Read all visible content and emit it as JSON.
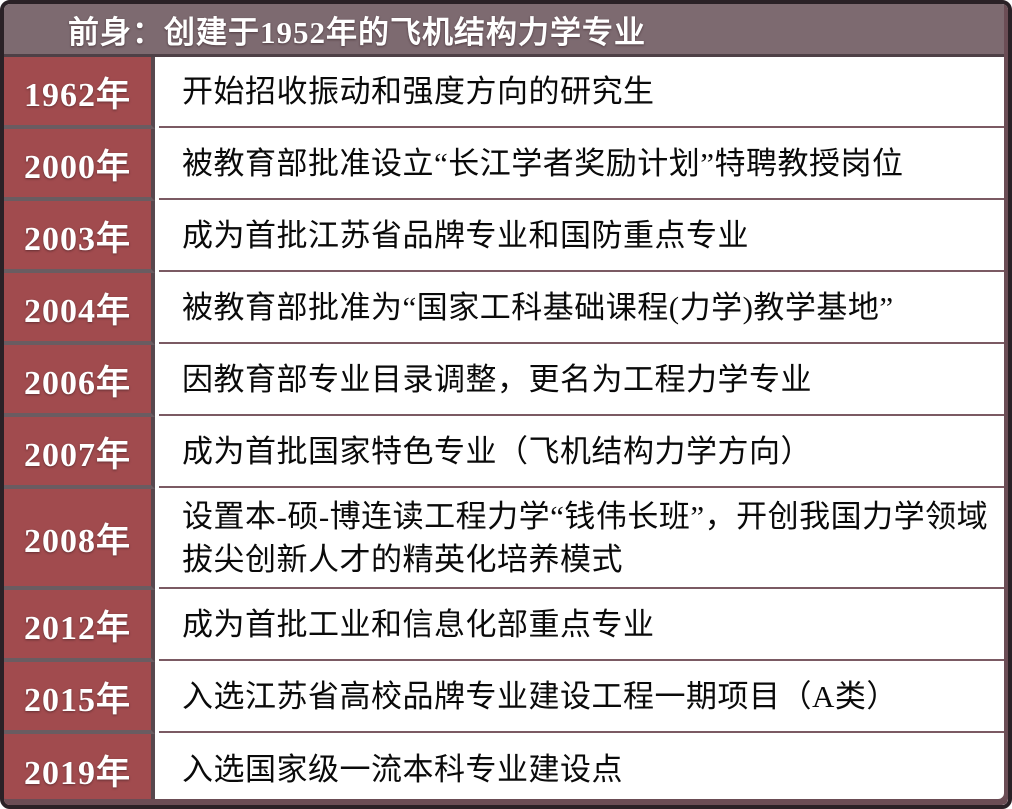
{
  "header": {
    "title": "前身：创建于1952年的飞机结构力学专业"
  },
  "rows": [
    {
      "year": "1962年",
      "desc": "开始招收振动和强度方向的研究生",
      "tall": false
    },
    {
      "year": "2000年",
      "desc": "被教育部批准设立“长江学者奖励计划”特聘教授岗位",
      "tall": false
    },
    {
      "year": "2003年",
      "desc": "成为首批江苏省品牌专业和国防重点专业",
      "tall": false
    },
    {
      "year": "2004年",
      "desc": "被教育部批准为“国家工科基础课程(力学)教学基地”",
      "tall": false
    },
    {
      "year": "2006年",
      "desc": "因教育部专业目录调整，更名为工程力学专业",
      "tall": false
    },
    {
      "year": "2007年",
      "desc": "成为首批国家特色专业（飞机结构力学方向）",
      "tall": false
    },
    {
      "year": "2008年",
      "desc": "设置本-硕-博连读工程力学“钱伟长班”，开创我国力学领域拔尖创新人才的精英化培养模式",
      "tall": true
    },
    {
      "year": "2012年",
      "desc": "成为首批工业和信息化部重点专业",
      "tall": false
    },
    {
      "year": "2015年",
      "desc": "入选江苏省高校品牌专业建设工程一期项目（A类）",
      "tall": false
    },
    {
      "year": "2019年",
      "desc": "入选国家级一流本科专业建设点",
      "tall": false
    }
  ],
  "colors": {
    "header_bg": "#7d6a70",
    "header_line": "#4e4046",
    "year_bg": "#a14b4e",
    "row_divider": "#6a5c61",
    "col_divider": "#57484e",
    "desc_line": "#7b5a63",
    "border": "#2a2126",
    "inner_edge": "#6b4d55",
    "text_light": "#ffffff",
    "text_dark": "#0a0a0a"
  }
}
